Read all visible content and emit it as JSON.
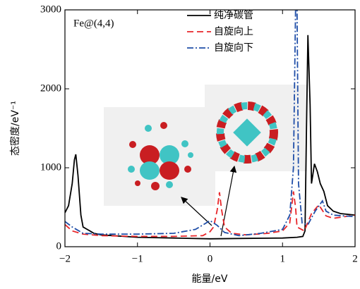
{
  "chart_data": {
    "type": "line",
    "annotation": "Fe@(4,4)",
    "x_label": "能量/eV",
    "y_label": "态密度/eV⁻¹",
    "xlim": [
      -2,
      2
    ],
    "ylim": [
      0,
      3000
    ],
    "xticks": [
      {
        "value": -2,
        "label": "−2"
      },
      {
        "value": -1,
        "label": "−1"
      },
      0,
      1,
      2
    ],
    "yticks": [
      0,
      1000,
      2000,
      3000
    ],
    "legend": "upper right",
    "series": [
      {
        "name": "纯净碳管",
        "color": "#000000",
        "dash": "solid",
        "x": [
          -2,
          -1.95,
          -1.9,
          -1.87,
          -1.85,
          -1.82,
          -1.78,
          -1.75,
          -1.6,
          -1.5,
          -1,
          -0.5,
          0,
          0.5,
          1,
          1.2,
          1.28,
          1.31,
          1.33,
          1.35,
          1.38,
          1.4,
          1.44,
          1.48,
          1.52,
          1.57,
          1.62,
          1.7,
          1.8,
          2
        ],
        "values": [
          430,
          520,
          800,
          1100,
          1170,
          900,
          400,
          250,
          170,
          150,
          120,
          110,
          100,
          105,
          110,
          120,
          130,
          200,
          1500,
          2680,
          1800,
          800,
          1050,
          950,
          800,
          700,
          520,
          450,
          420,
          400
        ]
      },
      {
        "name": "自旋向上",
        "color": "#e8262a",
        "dash": "dashed",
        "x": [
          -2,
          -1.9,
          -1.75,
          -1.5,
          -1,
          -0.5,
          -0.1,
          0,
          0.05,
          0.1,
          0.13,
          0.16,
          0.2,
          0.3,
          0.5,
          0.8,
          1,
          1.1,
          1.15,
          1.18,
          1.2,
          1.3,
          1.4,
          1.5,
          1.6,
          1.7,
          2
        ],
        "values": [
          280,
          200,
          160,
          140,
          130,
          130,
          140,
          190,
          250,
          470,
          690,
          470,
          250,
          170,
          150,
          170,
          200,
          300,
          700,
          500,
          250,
          200,
          420,
          530,
          390,
          360,
          400
        ]
      },
      {
        "name": "自旋向下",
        "color": "#1f4ea8",
        "dash": "dashdot",
        "x": [
          -2,
          -1.9,
          -1.75,
          -1.5,
          -1,
          -0.5,
          -0.2,
          0,
          0.1,
          0.2,
          0.4,
          0.7,
          1,
          1.1,
          1.15,
          1.18,
          1.2,
          1.22,
          1.27,
          1.35,
          1.45,
          1.55,
          1.6,
          1.7,
          2
        ],
        "values": [
          320,
          250,
          170,
          160,
          160,
          170,
          220,
          330,
          270,
          180,
          140,
          170,
          220,
          400,
          1000,
          3000,
          3000,
          800,
          300,
          280,
          450,
          580,
          450,
          400,
          380
        ]
      }
    ]
  }
}
